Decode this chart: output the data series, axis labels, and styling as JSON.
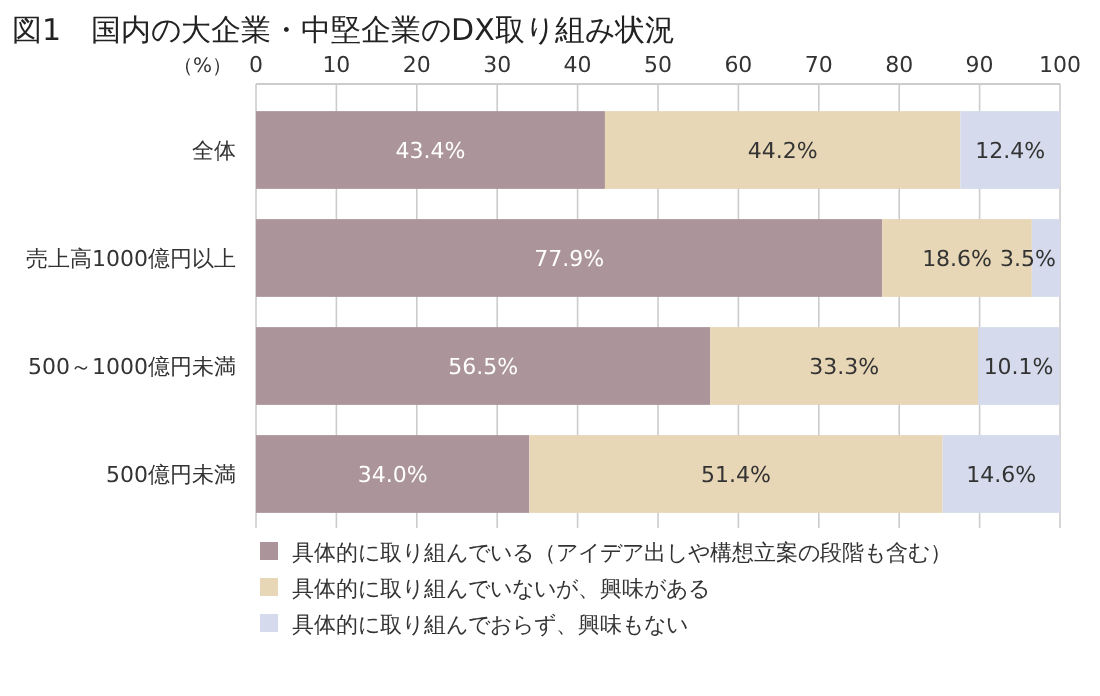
{
  "chart_data": {
    "type": "bar",
    "orientation": "horizontal",
    "stacked": true,
    "title": "図1　国内の大企業・中堅企業のDX取り組み状況",
    "xlabel": "（%）",
    "categories": [
      "全体",
      "売上高1000億円以上",
      "500～1000億円未満",
      "500億円未満"
    ],
    "xlim": [
      0,
      100
    ],
    "xticks": [
      0,
      10,
      20,
      30,
      40,
      50,
      60,
      70,
      80,
      90,
      100
    ],
    "grid": "x",
    "legend": "bottom",
    "series": [
      {
        "name": "具体的に取り組んでいる（アイデア出しや構想立案の段階も含む）",
        "color": "#ab959b",
        "values": [
          43.4,
          77.9,
          56.5,
          34.0
        ],
        "value_labels": [
          "43.4%",
          "77.9%",
          "56.5%",
          "34.0%"
        ]
      },
      {
        "name": "具体的に取り組んでいないが、興味がある",
        "color": "#e8d7b6",
        "values": [
          44.2,
          18.6,
          33.3,
          51.4
        ],
        "value_labels": [
          "44.2%",
          "18.6%",
          "33.3%",
          "51.4%"
        ]
      },
      {
        "name": "具体的に取り組んでおらず、興味もない",
        "color": "#d5dbec",
        "values": [
          12.4,
          3.5,
          10.1,
          14.6
        ],
        "value_labels": [
          "12.4%",
          "3.5%",
          "10.1%",
          "14.6%"
        ]
      }
    ]
  }
}
